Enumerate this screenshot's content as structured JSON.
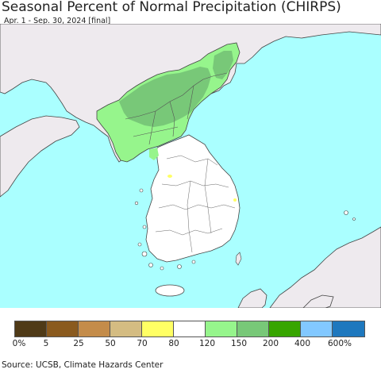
{
  "title": "Seasonal Percent of Normal Precipitation (CHIRPS)",
  "subtitle": "Apr. 1 - Sep. 30, 2024 [final]",
  "source": "Source: UCSB, Climate Hazards Center",
  "colors": {
    "ocean": "#aaffff",
    "foreign_land": "#eeeaee",
    "band_80_120": "#ffffff",
    "band_120_150": "#96f58c",
    "band_150_200": "#78c878",
    "band_200_400": "#37a500",
    "band_70_80": "#ffff64",
    "border": "#444444"
  },
  "legend": {
    "colors": [
      "#4f3a17",
      "#8a5a1e",
      "#c48c4a",
      "#d4bc82",
      "#ffff64",
      "#ffffff",
      "#96f58c",
      "#78c878",
      "#37a500",
      "#82c8ff",
      "#1e78be"
    ],
    "labels": [
      "0%",
      "5",
      "25",
      "50",
      "70",
      "80",
      "120",
      "150",
      "200",
      "400",
      "600%"
    ]
  }
}
